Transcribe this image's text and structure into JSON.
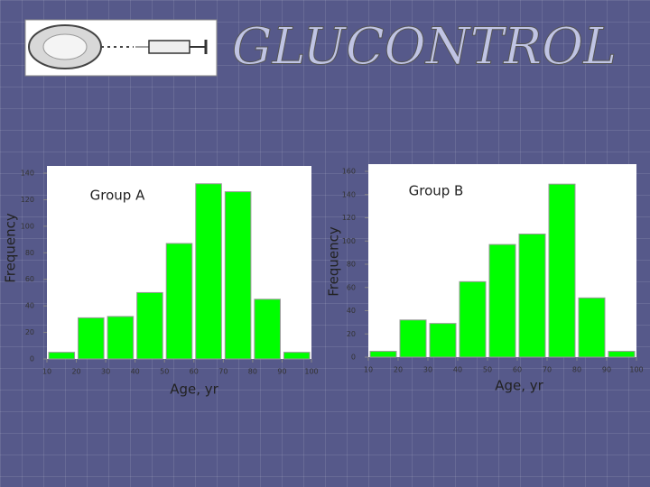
{
  "header": {
    "title": "GLUCONTROL"
  },
  "chart_data": [
    {
      "type": "histogram",
      "title": "Group A",
      "x_label": "Age, yr",
      "y_label": "Frequency",
      "bins": [
        10,
        20,
        30,
        40,
        50,
        60,
        70,
        80,
        90,
        100
      ],
      "values": [
        5,
        31,
        32,
        50,
        87,
        132,
        126,
        45,
        5
      ],
      "color": "#00ff00",
      "xlim": [
        10,
        100
      ],
      "xticks": [
        10,
        20,
        30,
        40,
        50,
        60,
        70,
        80,
        90,
        100
      ],
      "ylim": [
        0,
        140
      ],
      "yticks": [
        0,
        20,
        40,
        60,
        80,
        100,
        120,
        140
      ]
    },
    {
      "type": "histogram",
      "title": "Group B",
      "x_label": "Age, yr",
      "y_label": "Frequency",
      "bins": [
        10,
        20,
        30,
        40,
        50,
        60,
        70,
        80,
        90,
        100
      ],
      "values": [
        5,
        32,
        29,
        65,
        97,
        106,
        149,
        51,
        5
      ],
      "color": "#00ff00",
      "xlim": [
        10,
        100
      ],
      "xticks": [
        10,
        20,
        30,
        40,
        50,
        60,
        70,
        80,
        90,
        100
      ],
      "ylim": [
        0,
        160
      ],
      "yticks": [
        0,
        20,
        40,
        60,
        80,
        100,
        120,
        140,
        160
      ]
    }
  ]
}
